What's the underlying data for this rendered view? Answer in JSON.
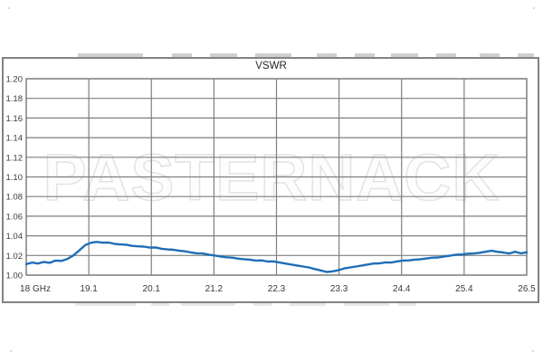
{
  "watermark": {
    "text": "PASTERNACK"
  },
  "colors": {
    "line": "#1f6db7",
    "grid": "#7f7f7f",
    "frame": "#828282",
    "tick_label": "#3a3a3a",
    "watermark_outline": "#e3e3e3"
  },
  "chart_data": {
    "type": "line",
    "title": "VSWR",
    "xlabel": "",
    "ylabel": "",
    "xlim": [
      18,
      26.5
    ],
    "ylim": [
      1.0,
      1.2
    ],
    "grid": "both",
    "legend": "none",
    "x_ticks": {
      "values": [
        18,
        19.0625,
        20.125,
        21.1875,
        22.25,
        23.3125,
        24.375,
        25.4375,
        26.5
      ],
      "labels": [
        "18 GHz",
        "19.1",
        "20.1",
        "21.2",
        "22.3",
        "23.3",
        "24.4",
        "25.4",
        "26.5"
      ]
    },
    "y_ticks": {
      "values": [
        1.0,
        1.02,
        1.04,
        1.06,
        1.08,
        1.1,
        1.12,
        1.14,
        1.16,
        1.18,
        1.2
      ],
      "labels": [
        "1.00",
        "1.02",
        "1.04",
        "1.06",
        "1.08",
        "1.10",
        "1.12",
        "1.14",
        "1.16",
        "1.18",
        "1.20"
      ]
    },
    "series": [
      {
        "name": "VSWR",
        "color": "#1f6db7",
        "x": [
          18.0,
          18.1,
          18.2,
          18.3,
          18.4,
          18.5,
          18.6,
          18.7,
          18.8,
          18.9,
          19.0,
          19.1,
          19.2,
          19.3,
          19.4,
          19.5,
          19.6,
          19.7,
          19.8,
          19.9,
          20.0,
          20.1,
          20.2,
          20.3,
          20.4,
          20.5,
          20.6,
          20.7,
          20.8,
          20.9,
          21.0,
          21.1,
          21.2,
          21.3,
          21.4,
          21.5,
          21.6,
          21.7,
          21.8,
          21.9,
          22.0,
          22.1,
          22.2,
          22.3,
          22.4,
          22.5,
          22.6,
          22.7,
          22.8,
          22.9,
          23.0,
          23.1,
          23.2,
          23.3,
          23.4,
          23.5,
          23.6,
          23.7,
          23.8,
          23.9,
          24.0,
          24.1,
          24.2,
          24.3,
          24.4,
          24.5,
          24.6,
          24.7,
          24.8,
          24.9,
          25.0,
          25.1,
          25.2,
          25.3,
          25.4,
          25.5,
          25.6,
          25.7,
          25.8,
          25.9,
          26.0,
          26.1,
          26.2,
          26.3,
          26.4,
          26.5
        ],
        "values": [
          1.0112,
          1.0128,
          1.0118,
          1.0135,
          1.0125,
          1.0148,
          1.0145,
          1.0165,
          1.02,
          1.0252,
          1.0305,
          1.033,
          1.0338,
          1.033,
          1.0332,
          1.0318,
          1.0312,
          1.031,
          1.0298,
          1.0293,
          1.029,
          1.028,
          1.0282,
          1.0268,
          1.0262,
          1.0258,
          1.0248,
          1.0242,
          1.023,
          1.0222,
          1.022,
          1.0208,
          1.02,
          1.019,
          1.0182,
          1.0178,
          1.0168,
          1.0162,
          1.0158,
          1.0148,
          1.015,
          1.0138,
          1.014,
          1.0128,
          1.0118,
          1.0108,
          1.0098,
          1.0088,
          1.0078,
          1.0062,
          1.0048,
          1.0032,
          1.0038,
          1.005,
          1.0068,
          1.0078,
          1.0088,
          1.0098,
          1.0108,
          1.0118,
          1.012,
          1.013,
          1.0128,
          1.014,
          1.0148,
          1.015,
          1.0158,
          1.0162,
          1.017,
          1.0178,
          1.018,
          1.019,
          1.0198,
          1.0208,
          1.021,
          1.0218,
          1.022,
          1.0228,
          1.0238,
          1.0248,
          1.0238,
          1.023,
          1.022,
          1.0238,
          1.0222,
          1.0232
        ]
      }
    ]
  }
}
